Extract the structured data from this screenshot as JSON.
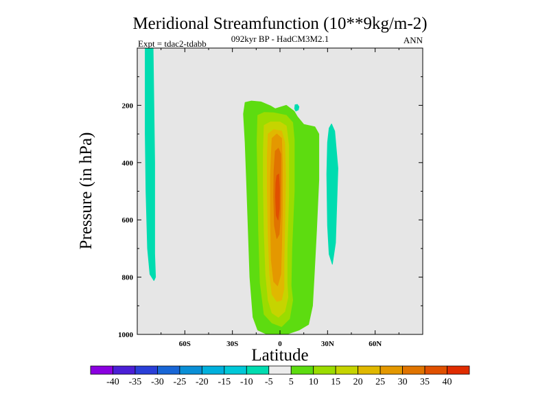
{
  "chart_data": {
    "type": "heatmap",
    "title": "Meridional Streamfunction (10**9kg/m-2)",
    "subtitle_center": "092kyr BP - HadCM3M2.1",
    "subtitle_left": "Expt = tdac2-tdabb",
    "subtitle_right": "ANN",
    "xlabel": "Latitude",
    "ylabel": "Pressure (in hPa)",
    "xlim": [
      -90,
      90
    ],
    "ylim": [
      1000,
      0
    ],
    "x_ticks": [
      {
        "value": -60,
        "label": "60S"
      },
      {
        "value": -30,
        "label": "30S"
      },
      {
        "value": 0,
        "label": "0"
      },
      {
        "value": 30,
        "label": "30N"
      },
      {
        "value": 60,
        "label": "60N"
      }
    ],
    "y_ticks": [
      {
        "value": 200,
        "label": "200"
      },
      {
        "value": 400,
        "label": "400"
      },
      {
        "value": 600,
        "label": "600"
      },
      {
        "value": 800,
        "label": "800"
      },
      {
        "value": 1000,
        "label": "1000"
      }
    ],
    "background_color": "#e6e6e6",
    "colorbar": {
      "levels": [
        "-40",
        "-35",
        "-30",
        "-25",
        "-20",
        "-15",
        "-10",
        "-5",
        "5",
        "10",
        "15",
        "20",
        "25",
        "30",
        "35",
        "40"
      ],
      "colors": [
        "#8a00e0",
        "#4b1fd6",
        "#2a3fd8",
        "#1866d6",
        "#0a8fd6",
        "#00b0dd",
        "#00c8d8",
        "#00dcb0",
        "#ececec",
        "#5ddc10",
        "#9bdc00",
        "#c6d400",
        "#e0b800",
        "#e49800",
        "#e07400",
        "#e05000",
        "#e02c00"
      ]
    },
    "regions": [
      {
        "name": "negative-band-south",
        "range": [
          -10,
          -5
        ],
        "color": "#00dcb0",
        "outline": [
          [
            -85,
            0
          ],
          [
            -80,
            0
          ],
          [
            -79,
            400
          ],
          [
            -79,
            720
          ],
          [
            -78.5,
            800
          ],
          [
            -79.5,
            812
          ],
          [
            -82,
            790
          ],
          [
            -83.5,
            700
          ],
          [
            -84.5,
            500
          ],
          [
            -85,
            300
          ],
          [
            -85,
            0
          ]
        ]
      },
      {
        "name": "negative-blob-north",
        "range": [
          -10,
          -5
        ],
        "color": "#00dcb0",
        "outline": [
          [
            32.5,
            265
          ],
          [
            34.5,
            290
          ],
          [
            36.5,
            420
          ],
          [
            35,
            680
          ],
          [
            33,
            755
          ],
          [
            31,
            720
          ],
          [
            30,
            620
          ],
          [
            29.5,
            440
          ],
          [
            30,
            330
          ],
          [
            31,
            280
          ],
          [
            32.5,
            265
          ]
        ]
      },
      {
        "name": "negative-speck",
        "range": [
          -10,
          -5
        ],
        "color": "#00dcb0",
        "outline": [
          [
            9.5,
            198
          ],
          [
            11,
            197
          ],
          [
            12,
            205
          ],
          [
            11.5,
            216
          ],
          [
            10,
            220
          ],
          [
            9.2,
            212
          ],
          [
            9.5,
            198
          ]
        ]
      },
      {
        "name": "positive-level-5",
        "range": [
          5,
          10
        ],
        "color": "#5ddc10",
        "outline": [
          [
            -22,
            190
          ],
          [
            -18,
            185
          ],
          [
            -12,
            188
          ],
          [
            -6,
            202
          ],
          [
            -3,
            212
          ],
          [
            4,
            200
          ],
          [
            9,
            221
          ],
          [
            11,
            240
          ],
          [
            15,
            267
          ],
          [
            22,
            275
          ],
          [
            24.5,
            300
          ],
          [
            24.5,
            460
          ],
          [
            23,
            640
          ],
          [
            21.5,
            800
          ],
          [
            20.5,
            900
          ],
          [
            18,
            965
          ],
          [
            12,
            985
          ],
          [
            4,
            1000
          ],
          [
            -8,
            1000
          ],
          [
            -14,
            985
          ],
          [
            -17,
            940
          ],
          [
            -19,
            800
          ],
          [
            -20,
            640
          ],
          [
            -21,
            480
          ],
          [
            -22,
            330
          ],
          [
            -23,
            230
          ],
          [
            -22,
            190
          ]
        ]
      },
      {
        "name": "positive-level-10",
        "range": [
          10,
          15
        ],
        "color": "#9bdc00",
        "outline": [
          [
            -14,
            235
          ],
          [
            -10,
            225
          ],
          [
            -4,
            226
          ],
          [
            4,
            235
          ],
          [
            8,
            260
          ],
          [
            9,
            320
          ],
          [
            9,
            500
          ],
          [
            7.5,
            700
          ],
          [
            7,
            830
          ],
          [
            8,
            880
          ],
          [
            6,
            945
          ],
          [
            1,
            973
          ],
          [
            -5,
            960
          ],
          [
            -10,
            930
          ],
          [
            -12.5,
            820
          ],
          [
            -13.5,
            640
          ],
          [
            -14,
            470
          ],
          [
            -14.5,
            330
          ],
          [
            -14,
            235
          ]
        ]
      },
      {
        "name": "positive-level-15",
        "range": [
          15,
          20
        ],
        "color": "#c6d400",
        "outline": [
          [
            -10,
            270
          ],
          [
            -6,
            258
          ],
          [
            0,
            258
          ],
          [
            4,
            272
          ],
          [
            5.5,
            340
          ],
          [
            5.5,
            520
          ],
          [
            4.5,
            700
          ],
          [
            4.5,
            820
          ],
          [
            5,
            870
          ],
          [
            3,
            920
          ],
          [
            -1,
            940
          ],
          [
            -5,
            925
          ],
          [
            -7.5,
            880
          ],
          [
            -9,
            790
          ],
          [
            -10,
            640
          ],
          [
            -10.5,
            480
          ],
          [
            -10.5,
            360
          ],
          [
            -10,
            270
          ]
        ]
      },
      {
        "name": "positive-level-20",
        "range": [
          20,
          25
        ],
        "color": "#e0b800",
        "outline": [
          [
            -7.5,
            300
          ],
          [
            -4,
            285
          ],
          [
            1,
            290
          ],
          [
            3,
            330
          ],
          [
            3.5,
            450
          ],
          [
            3,
            620
          ],
          [
            2.5,
            750
          ],
          [
            2.5,
            840
          ],
          [
            1,
            880
          ],
          [
            -2,
            885
          ],
          [
            -5,
            860
          ],
          [
            -6.5,
            790
          ],
          [
            -7.5,
            650
          ],
          [
            -8,
            500
          ],
          [
            -8,
            380
          ],
          [
            -7.5,
            300
          ]
        ]
      },
      {
        "name": "positive-level-25",
        "range": [
          25,
          30
        ],
        "color": "#e49800",
        "outline": [
          [
            -5,
            315
          ],
          [
            -2,
            300
          ],
          [
            1,
            315
          ],
          [
            1.5,
            400
          ],
          [
            1.5,
            560
          ],
          [
            1,
            700
          ],
          [
            0.5,
            790
          ],
          [
            -1.5,
            830
          ],
          [
            -4,
            815
          ],
          [
            -5.5,
            740
          ],
          [
            -6,
            600
          ],
          [
            -6,
            450
          ],
          [
            -5.5,
            370
          ],
          [
            -5,
            315
          ]
        ]
      },
      {
        "name": "positive-level-30",
        "range": [
          30,
          35
        ],
        "color": "#e07400",
        "outline": [
          [
            -3,
            360
          ],
          [
            -1,
            350
          ],
          [
            0.5,
            370
          ],
          [
            0.5,
            470
          ],
          [
            0.3,
            580
          ],
          [
            -0.5,
            650
          ],
          [
            -2,
            665
          ],
          [
            -3.5,
            620
          ],
          [
            -4,
            520
          ],
          [
            -3.8,
            430
          ],
          [
            -3,
            360
          ]
        ]
      },
      {
        "name": "positive-level-35",
        "range": [
          35,
          40
        ],
        "color": "#e05000",
        "outline": [
          [
            -2,
            445
          ],
          [
            -0.8,
            440
          ],
          [
            -0.3,
            490
          ],
          [
            -0.4,
            560
          ],
          [
            -1.2,
            600
          ],
          [
            -2.4,
            585
          ],
          [
            -2.8,
            520
          ],
          [
            -2.6,
            470
          ],
          [
            -2,
            445
          ]
        ]
      }
    ]
  }
}
